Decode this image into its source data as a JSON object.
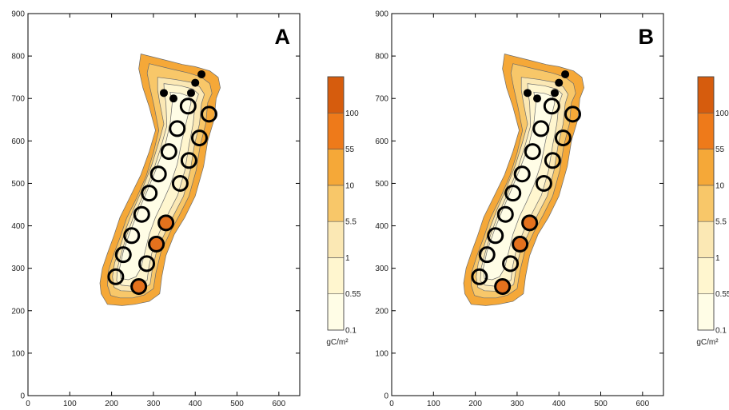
{
  "chart_data": [
    {
      "type": "contour",
      "title": "A",
      "xlim": [
        0,
        650
      ],
      "ylim": [
        0,
        900
      ],
      "xticks": [
        0,
        100,
        200,
        300,
        400,
        500,
        600
      ],
      "yticks": [
        0,
        100,
        200,
        300,
        400,
        500,
        600,
        700,
        800,
        900
      ],
      "colorbar": {
        "levels": [
          "0.1",
          "0.55",
          "1",
          "5.5",
          "10",
          "55",
          "100"
        ],
        "colors": [
          "#fffde6",
          "#fff6cf",
          "#fbe8b4",
          "#f8c769",
          "#f5a838",
          "#ee7a1a",
          "#d65c0d"
        ],
        "unit": "gC/m²"
      },
      "open_circles": [
        {
          "x": 383,
          "y": 682
        },
        {
          "x": 433,
          "y": 663
        },
        {
          "x": 357,
          "y": 629
        },
        {
          "x": 410,
          "y": 607
        },
        {
          "x": 337,
          "y": 575
        },
        {
          "x": 385,
          "y": 554
        },
        {
          "x": 312,
          "y": 522
        },
        {
          "x": 364,
          "y": 500
        },
        {
          "x": 290,
          "y": 477
        },
        {
          "x": 272,
          "y": 427
        },
        {
          "x": 248,
          "y": 377
        },
        {
          "x": 284,
          "y": 311
        },
        {
          "x": 228,
          "y": 332
        },
        {
          "x": 210,
          "y": 280
        }
      ],
      "filled_circles": [
        {
          "x": 330,
          "y": 407
        },
        {
          "x": 307,
          "y": 357
        },
        {
          "x": 265,
          "y": 257
        }
      ],
      "dots": [
        {
          "x": 325,
          "y": 713
        },
        {
          "x": 348,
          "y": 700
        },
        {
          "x": 390,
          "y": 713
        },
        {
          "x": 400,
          "y": 737
        },
        {
          "x": 415,
          "y": 757
        }
      ]
    },
    {
      "type": "contour",
      "title": "B",
      "xlim": [
        0,
        650
      ],
      "ylim": [
        0,
        900
      ],
      "xticks": [
        0,
        100,
        200,
        300,
        400,
        500,
        600
      ],
      "yticks": [
        0,
        100,
        200,
        300,
        400,
        500,
        600,
        700,
        800,
        900
      ],
      "colorbar": {
        "levels": [
          "0.1",
          "0.55",
          "1",
          "5.5",
          "10",
          "55",
          "100"
        ],
        "colors": [
          "#fffde6",
          "#fff6cf",
          "#fbe8b4",
          "#f8c769",
          "#f5a838",
          "#ee7a1a",
          "#d65c0d"
        ],
        "unit": "gC/m²"
      },
      "open_circles": [
        {
          "x": 383,
          "y": 682
        },
        {
          "x": 433,
          "y": 663
        },
        {
          "x": 357,
          "y": 629
        },
        {
          "x": 410,
          "y": 607
        },
        {
          "x": 337,
          "y": 575
        },
        {
          "x": 385,
          "y": 554
        },
        {
          "x": 312,
          "y": 522
        },
        {
          "x": 364,
          "y": 500
        },
        {
          "x": 290,
          "y": 477
        },
        {
          "x": 272,
          "y": 427
        },
        {
          "x": 248,
          "y": 377
        },
        {
          "x": 284,
          "y": 311
        },
        {
          "x": 228,
          "y": 332
        },
        {
          "x": 210,
          "y": 280
        }
      ],
      "filled_circles": [
        {
          "x": 330,
          "y": 407
        },
        {
          "x": 307,
          "y": 357
        },
        {
          "x": 265,
          "y": 257
        }
      ],
      "dots": [
        {
          "x": 325,
          "y": 713
        },
        {
          "x": 348,
          "y": 700
        },
        {
          "x": 390,
          "y": 713
        },
        {
          "x": 400,
          "y": 737
        },
        {
          "x": 415,
          "y": 757
        }
      ]
    }
  ]
}
